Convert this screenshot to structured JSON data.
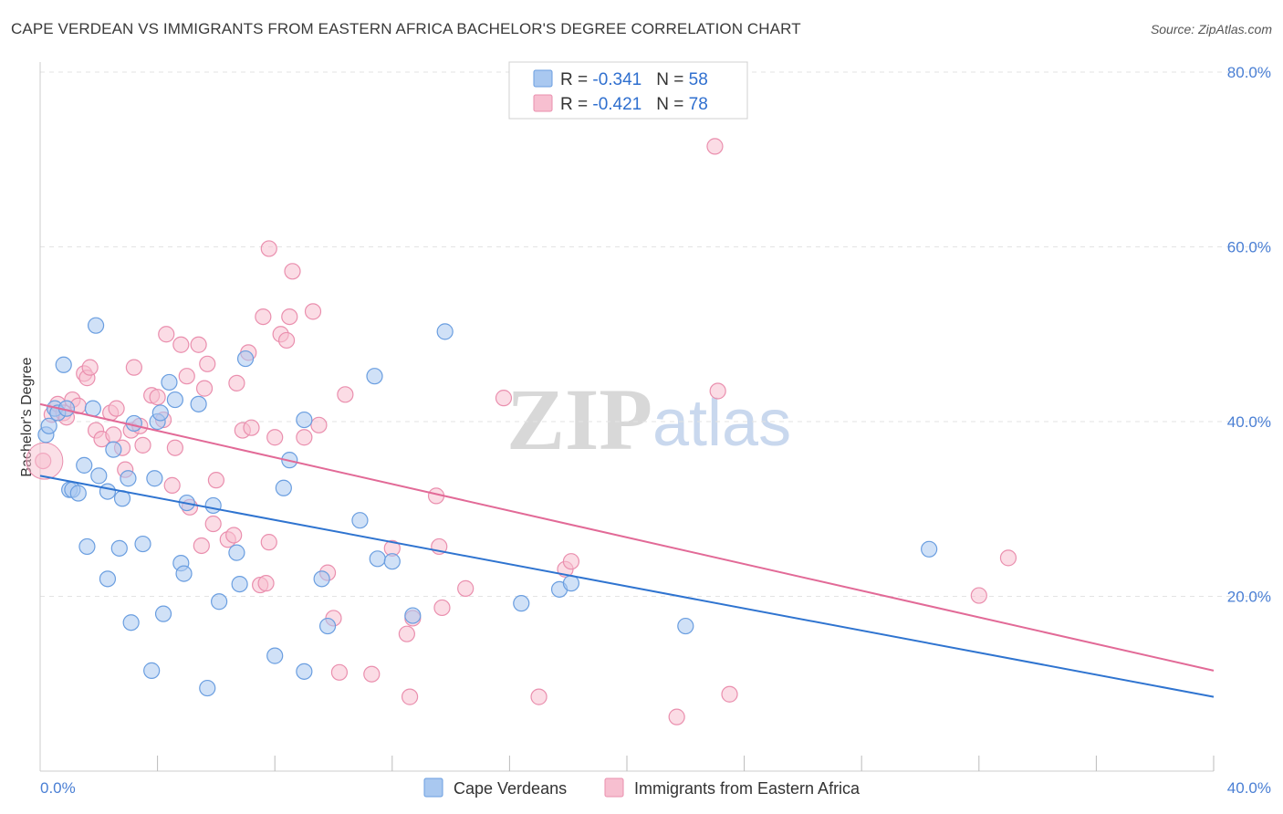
{
  "header": {
    "title": "CAPE VERDEAN VS IMMIGRANTS FROM EASTERN AFRICA BACHELOR'S DEGREE CORRELATION CHART",
    "source": "Source: ZipAtlas.com"
  },
  "watermark": {
    "zip": "ZIP",
    "atlas": "atlas"
  },
  "colors": {
    "blue_fill": "#a9c8f0",
    "blue_stroke": "#6a9ee0",
    "blue_line": "#2f74d0",
    "pink_fill": "#f7bfd0",
    "pink_stroke": "#ea8fae",
    "pink_line": "#e26a97",
    "accent_text": "#2f6fcf"
  },
  "chart_data": {
    "type": "scatter",
    "title": "CAPE VERDEAN VS IMMIGRANTS FROM EASTERN AFRICA BACHELOR'S DEGREE CORRELATION CHART",
    "xlabel": "",
    "ylabel": "Bachelor's Degree",
    "xlim": [
      0,
      40
    ],
    "ylim": [
      0,
      80
    ],
    "x_tick_labels": [
      "0.0%",
      "40.0%"
    ],
    "y_ticks": [
      20,
      40,
      60,
      80
    ],
    "y_tick_labels": [
      "20.0%",
      "40.0%",
      "60.0%",
      "80.0%"
    ],
    "legend": [
      {
        "r_label": "R = ",
        "r_value": "-0.341",
        "n_label": "N = ",
        "n_value": "58"
      },
      {
        "r_label": "R = ",
        "r_value": "-0.421",
        "n_label": "N = ",
        "n_value": "78"
      }
    ],
    "series": [
      {
        "name": "Cape Verdeans",
        "color": "#6a9ee0",
        "trend": {
          "x": [
            0,
            40
          ],
          "y": [
            33.8,
            8.5
          ]
        },
        "points": [
          [
            0.2,
            38.5
          ],
          [
            0.3,
            39.5
          ],
          [
            0.5,
            41.5
          ],
          [
            0.6,
            41.0
          ],
          [
            0.8,
            46.5
          ],
          [
            0.9,
            41.5
          ],
          [
            1.0,
            32.2
          ],
          [
            1.1,
            32.2
          ],
          [
            1.3,
            31.8
          ],
          [
            1.5,
            35.0
          ],
          [
            1.6,
            25.7
          ],
          [
            1.8,
            41.5
          ],
          [
            1.9,
            51.0
          ],
          [
            2.0,
            33.8
          ],
          [
            2.3,
            22.0
          ],
          [
            2.3,
            32.0
          ],
          [
            2.5,
            36.8
          ],
          [
            2.7,
            25.5
          ],
          [
            2.8,
            31.2
          ],
          [
            3.0,
            33.5
          ],
          [
            3.1,
            17.0
          ],
          [
            3.2,
            39.8
          ],
          [
            3.5,
            26.0
          ],
          [
            3.8,
            11.5
          ],
          [
            3.9,
            33.5
          ],
          [
            4.0,
            40.0
          ],
          [
            4.1,
            41.0
          ],
          [
            4.2,
            18.0
          ],
          [
            4.4,
            44.5
          ],
          [
            4.6,
            42.5
          ],
          [
            4.8,
            23.8
          ],
          [
            4.9,
            22.6
          ],
          [
            5.0,
            30.7
          ],
          [
            5.4,
            42.0
          ],
          [
            5.7,
            9.5
          ],
          [
            5.9,
            30.4
          ],
          [
            6.1,
            19.4
          ],
          [
            6.7,
            25.0
          ],
          [
            6.8,
            21.4
          ],
          [
            7.0,
            47.2
          ],
          [
            8.0,
            13.2
          ],
          [
            8.3,
            32.4
          ],
          [
            8.5,
            35.6
          ],
          [
            9.0,
            11.4
          ],
          [
            9.0,
            40.2
          ],
          [
            9.6,
            22.0
          ],
          [
            9.8,
            16.6
          ],
          [
            10.9,
            28.7
          ],
          [
            11.4,
            45.2
          ],
          [
            11.5,
            24.3
          ],
          [
            12.0,
            24.0
          ],
          [
            12.7,
            17.8
          ],
          [
            13.8,
            50.3
          ],
          [
            16.4,
            19.2
          ],
          [
            17.7,
            20.8
          ],
          [
            18.1,
            21.5
          ],
          [
            22.0,
            16.6
          ],
          [
            30.3,
            25.4
          ]
        ]
      },
      {
        "name": "Immigrants from Eastern Africa",
        "color": "#ea8fae",
        "trend": {
          "x": [
            0,
            40
          ],
          "y": [
            42.0,
            11.5
          ]
        },
        "points": [
          [
            0.1,
            35.5
          ],
          [
            0.4,
            40.8
          ],
          [
            0.6,
            42.0
          ],
          [
            0.8,
            41.0
          ],
          [
            0.9,
            40.5
          ],
          [
            1.1,
            42.5
          ],
          [
            1.3,
            41.8
          ],
          [
            1.5,
            45.5
          ],
          [
            1.6,
            45.0
          ],
          [
            1.7,
            46.2
          ],
          [
            1.9,
            39.0
          ],
          [
            2.1,
            38.0
          ],
          [
            2.4,
            41.0
          ],
          [
            2.5,
            38.5
          ],
          [
            2.6,
            41.5
          ],
          [
            2.8,
            37.0
          ],
          [
            2.9,
            34.5
          ],
          [
            3.1,
            39.0
          ],
          [
            3.2,
            46.2
          ],
          [
            3.4,
            39.5
          ],
          [
            3.5,
            37.3
          ],
          [
            3.8,
            43.0
          ],
          [
            4.0,
            42.8
          ],
          [
            4.2,
            40.2
          ],
          [
            4.3,
            50.0
          ],
          [
            4.5,
            32.7
          ],
          [
            4.6,
            37.0
          ],
          [
            4.8,
            48.8
          ],
          [
            5.0,
            45.2
          ],
          [
            5.1,
            30.2
          ],
          [
            5.4,
            48.8
          ],
          [
            5.5,
            25.8
          ],
          [
            5.6,
            43.8
          ],
          [
            5.7,
            46.6
          ],
          [
            5.9,
            28.3
          ],
          [
            6.0,
            33.3
          ],
          [
            6.4,
            26.5
          ],
          [
            6.6,
            27.0
          ],
          [
            6.7,
            44.4
          ],
          [
            6.9,
            39.0
          ],
          [
            7.1,
            47.9
          ],
          [
            7.2,
            39.3
          ],
          [
            7.5,
            21.3
          ],
          [
            7.6,
            52.0
          ],
          [
            7.7,
            21.5
          ],
          [
            7.8,
            26.2
          ],
          [
            7.8,
            59.8
          ],
          [
            8.0,
            38.2
          ],
          [
            8.2,
            50.0
          ],
          [
            8.4,
            49.3
          ],
          [
            8.5,
            52.0
          ],
          [
            8.6,
            57.2
          ],
          [
            9.0,
            38.2
          ],
          [
            9.3,
            52.6
          ],
          [
            9.5,
            39.6
          ],
          [
            9.8,
            22.7
          ],
          [
            10.0,
            17.5
          ],
          [
            10.2,
            11.3
          ],
          [
            10.4,
            43.1
          ],
          [
            11.3,
            11.1
          ],
          [
            12.0,
            25.5
          ],
          [
            12.5,
            15.7
          ],
          [
            12.6,
            8.5
          ],
          [
            12.7,
            17.5
          ],
          [
            13.5,
            31.5
          ],
          [
            13.6,
            25.7
          ],
          [
            13.7,
            18.7
          ],
          [
            14.5,
            20.9
          ],
          [
            15.8,
            42.7
          ],
          [
            17.0,
            8.5
          ],
          [
            17.9,
            23.1
          ],
          [
            18.1,
            24.0
          ],
          [
            21.7,
            6.2
          ],
          [
            23.0,
            71.5
          ],
          [
            23.1,
            43.5
          ],
          [
            23.5,
            8.8
          ],
          [
            32.0,
            20.1
          ],
          [
            33.0,
            24.4
          ]
        ]
      }
    ]
  }
}
